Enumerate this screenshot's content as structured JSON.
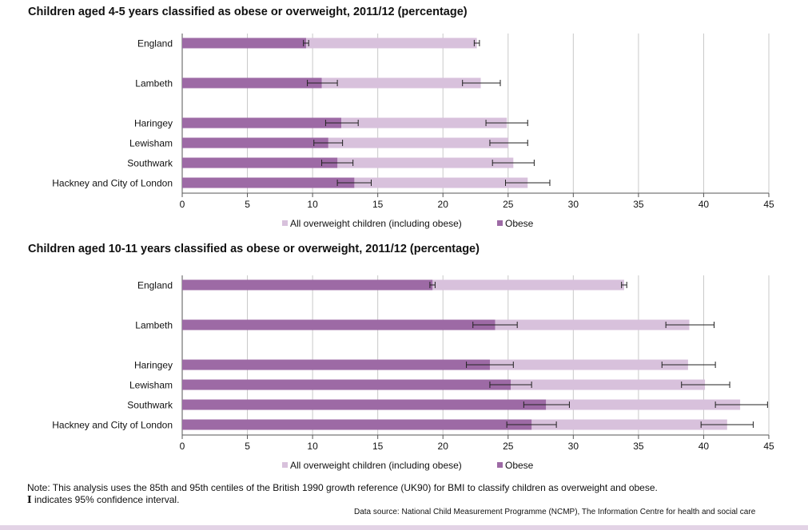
{
  "colors": {
    "overweight": "#d8c1dc",
    "obese": "#9d6aa5",
    "grid": "#c8c8c8",
    "axis": "#555555",
    "error_bar": "#222222",
    "bottom_band": "#e3d3e6"
  },
  "chart_data": [
    {
      "type": "bar",
      "orientation": "horizontal",
      "title": "Children aged 4-5 years classified as obese or overweight, 2011/12 (percentage)",
      "categories": [
        "England",
        "Lambeth",
        "Haringey",
        "Lewisham",
        "Southwark",
        "Hackney and City of London"
      ],
      "series": [
        {
          "name": "All overweight children (including obese)",
          "values": [
            22.6,
            22.9,
            24.9,
            25.0,
            25.4,
            26.5
          ],
          "ci_low": [
            22.4,
            21.5,
            23.3,
            23.6,
            23.8,
            24.8
          ],
          "ci_high": [
            22.8,
            24.4,
            26.5,
            26.5,
            27.0,
            28.2
          ]
        },
        {
          "name": "Obese",
          "values": [
            9.5,
            10.7,
            12.2,
            11.2,
            11.9,
            13.2
          ],
          "ci_low": [
            9.3,
            9.6,
            11.0,
            10.1,
            10.7,
            11.9
          ],
          "ci_high": [
            9.7,
            11.9,
            13.5,
            12.3,
            13.1,
            14.5
          ]
        }
      ],
      "xlim": [
        0,
        45
      ],
      "xticks": [
        0,
        5,
        10,
        15,
        20,
        25,
        30,
        35,
        40,
        45
      ],
      "xlabel": "",
      "ylabel": "",
      "grid": true,
      "legend_position": "bottom"
    },
    {
      "type": "bar",
      "orientation": "horizontal",
      "title": "Children aged 10-11 years classified as obese or overweight, 2011/12 (percentage)",
      "categories": [
        "England",
        "Lambeth",
        "Haringey",
        "Lewisham",
        "Southwark",
        "Hackney and City of London"
      ],
      "series": [
        {
          "name": "All overweight children (including obese)",
          "values": [
            33.9,
            38.9,
            38.8,
            40.1,
            42.8,
            41.8
          ],
          "ci_low": [
            33.7,
            37.1,
            36.8,
            38.3,
            40.9,
            39.8
          ],
          "ci_high": [
            34.1,
            40.8,
            40.9,
            42.0,
            44.9,
            43.8
          ]
        },
        {
          "name": "Obese",
          "values": [
            19.2,
            24.0,
            23.6,
            25.2,
            27.9,
            26.8
          ],
          "ci_low": [
            19.0,
            22.3,
            21.8,
            23.6,
            26.2,
            24.9
          ],
          "ci_high": [
            19.4,
            25.7,
            25.4,
            26.8,
            29.7,
            28.7
          ]
        }
      ],
      "xlim": [
        0,
        45
      ],
      "xticks": [
        0,
        5,
        10,
        15,
        20,
        25,
        30,
        35,
        40,
        45
      ],
      "xlabel": "",
      "ylabel": "",
      "grid": true,
      "legend_position": "bottom"
    }
  ],
  "note_text": "Note: This analysis uses the 85th and 95th centiles of the British 1990 growth reference (UK90) for BMI to classify children as overweight and obese.",
  "ci_glyph": "I",
  "ci_note_text": " indicates 95% confidence interval.",
  "source_text": "Data source: National Child Measurement Programme (NCMP), The Information Centre for health and social care"
}
